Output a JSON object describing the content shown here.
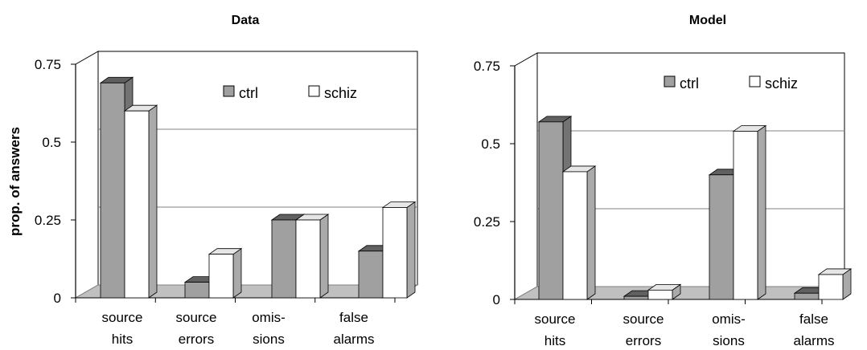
{
  "figure": {
    "ylabel": "prop. of answers"
  },
  "colors": {
    "ctrl": "#a0a0a0",
    "schiz": "#ffffff",
    "floor": "#c0c0c0",
    "gridline": "#808080"
  },
  "chart_data": [
    {
      "type": "bar",
      "title": "Data",
      "categories": [
        [
          "source",
          "hits"
        ],
        [
          "source",
          "errors"
        ],
        [
          "omis-",
          "sions"
        ],
        [
          "false",
          "alarms"
        ]
      ],
      "series": [
        {
          "name": "ctrl",
          "values": [
            0.69,
            0.05,
            0.25,
            0.15
          ]
        },
        {
          "name": "schiz",
          "values": [
            0.6,
            0.14,
            0.25,
            0.29
          ]
        }
      ],
      "yticks": [
        "0",
        "0.25",
        "0.5",
        "0.75"
      ],
      "ylim": [
        0,
        0.75
      ],
      "ylabel": "prop. of answers",
      "legend": "top-right",
      "grid": true
    },
    {
      "type": "bar",
      "title": "Model",
      "categories": [
        [
          "source",
          "hits"
        ],
        [
          "source",
          "errors"
        ],
        [
          "omis-",
          "sions"
        ],
        [
          "false",
          "alarms"
        ]
      ],
      "series": [
        {
          "name": "ctrl",
          "values": [
            0.57,
            0.01,
            0.4,
            0.02
          ]
        },
        {
          "name": "schiz",
          "values": [
            0.41,
            0.03,
            0.54,
            0.08
          ]
        }
      ],
      "yticks": [
        "0",
        "0.25",
        "0.5",
        "0.75"
      ],
      "ylim": [
        0,
        0.75
      ],
      "legend": "top-right",
      "grid": true
    }
  ]
}
